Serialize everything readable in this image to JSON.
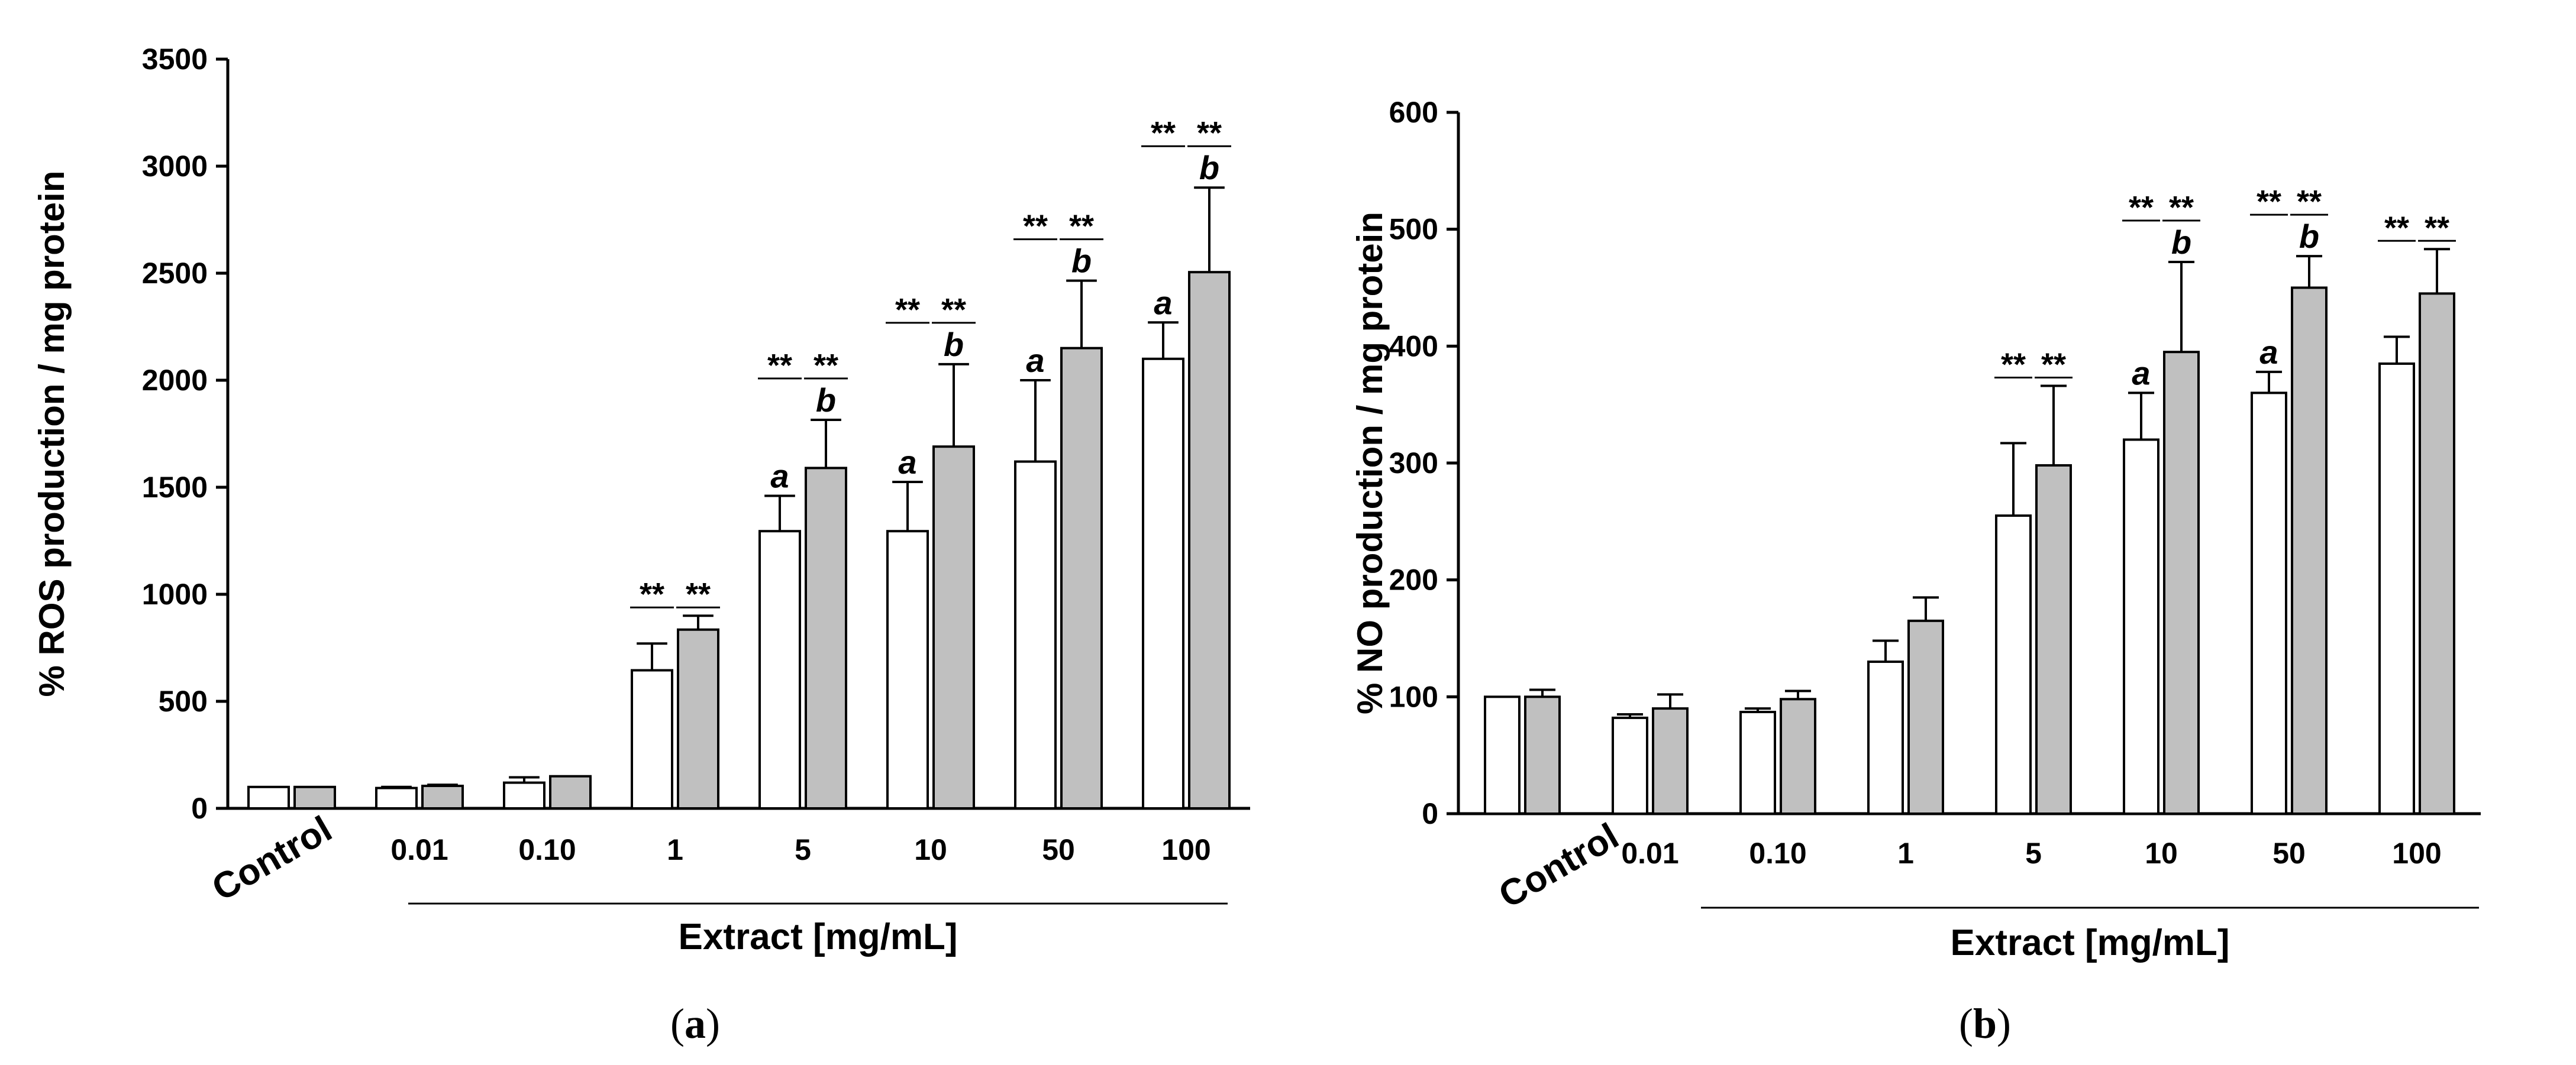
{
  "colors": {
    "treatment_a": "#ffffff",
    "treatment_b": "#c0c0c0",
    "stroke": "#000000"
  },
  "chart_data": [
    {
      "panel": "a",
      "type": "bar",
      "ylabel": "% ROS production / mg protein",
      "xlabel": "Extract [mg/mL]",
      "categories": [
        "Control",
        "0.01",
        "0.10",
        "1",
        "5",
        "10",
        "50",
        "100"
      ],
      "ylim": [
        0,
        3500
      ],
      "yticks": [
        0,
        500,
        1000,
        1500,
        2000,
        2500,
        3000,
        3500
      ],
      "series": [
        {
          "name": "white",
          "color": "#ffffff",
          "values": [
            100,
            95,
            120,
            645,
            1295,
            1295,
            1620,
            2100
          ],
          "errors": [
            0,
            5,
            25,
            125,
            165,
            230,
            380,
            170
          ],
          "letters": [
            "",
            "",
            "",
            "",
            "a",
            "a",
            "a",
            "a"
          ]
        },
        {
          "name": "grey",
          "color": "#c0c0c0",
          "values": [
            100,
            105,
            150,
            835,
            1590,
            1690,
            2150,
            2505
          ],
          "errors": [
            0,
            5,
            0,
            65,
            225,
            385,
            315,
            395
          ],
          "letters": [
            "",
            "",
            "",
            "",
            "b",
            "b",
            "b",
            "b"
          ]
        }
      ],
      "significance": [
        {
          "category": "1",
          "label": "**"
        },
        {
          "category": "5",
          "label": "**"
        },
        {
          "category": "10",
          "label": "**"
        },
        {
          "category": "50",
          "label": "**"
        },
        {
          "category": "100",
          "label": "**"
        }
      ]
    },
    {
      "panel": "b",
      "type": "bar",
      "ylabel": "% NO production / mg protein",
      "xlabel": "Extract [mg/mL]",
      "categories": [
        "Control",
        "0.01",
        "0.10",
        "1",
        "5",
        "10",
        "50",
        "100"
      ],
      "ylim": [
        0,
        600
      ],
      "yticks": [
        0,
        100,
        200,
        300,
        400,
        500,
        600
      ],
      "series": [
        {
          "name": "white",
          "color": "#ffffff",
          "values": [
            100,
            82,
            87,
            130,
            255,
            320,
            360,
            385
          ],
          "errors": [
            0,
            3,
            3,
            18,
            62,
            40,
            18,
            23
          ],
          "letters": [
            "",
            "",
            "",
            "",
            "",
            "a",
            "a",
            ""
          ]
        },
        {
          "name": "grey",
          "color": "#c0c0c0",
          "values": [
            100,
            90,
            98,
            165,
            298,
            395,
            450,
            445
          ],
          "errors": [
            6,
            12,
            7,
            20,
            68,
            77,
            27,
            38
          ],
          "letters": [
            "",
            "",
            "",
            "",
            "",
            "b",
            "b",
            ""
          ]
        }
      ],
      "significance": [
        {
          "category": "5",
          "label": "**"
        },
        {
          "category": "10",
          "label": "**"
        },
        {
          "category": "50",
          "label": "**"
        },
        {
          "category": "100",
          "label": "**"
        }
      ]
    }
  ],
  "panel_labels": [
    "(a)",
    "(b)"
  ]
}
